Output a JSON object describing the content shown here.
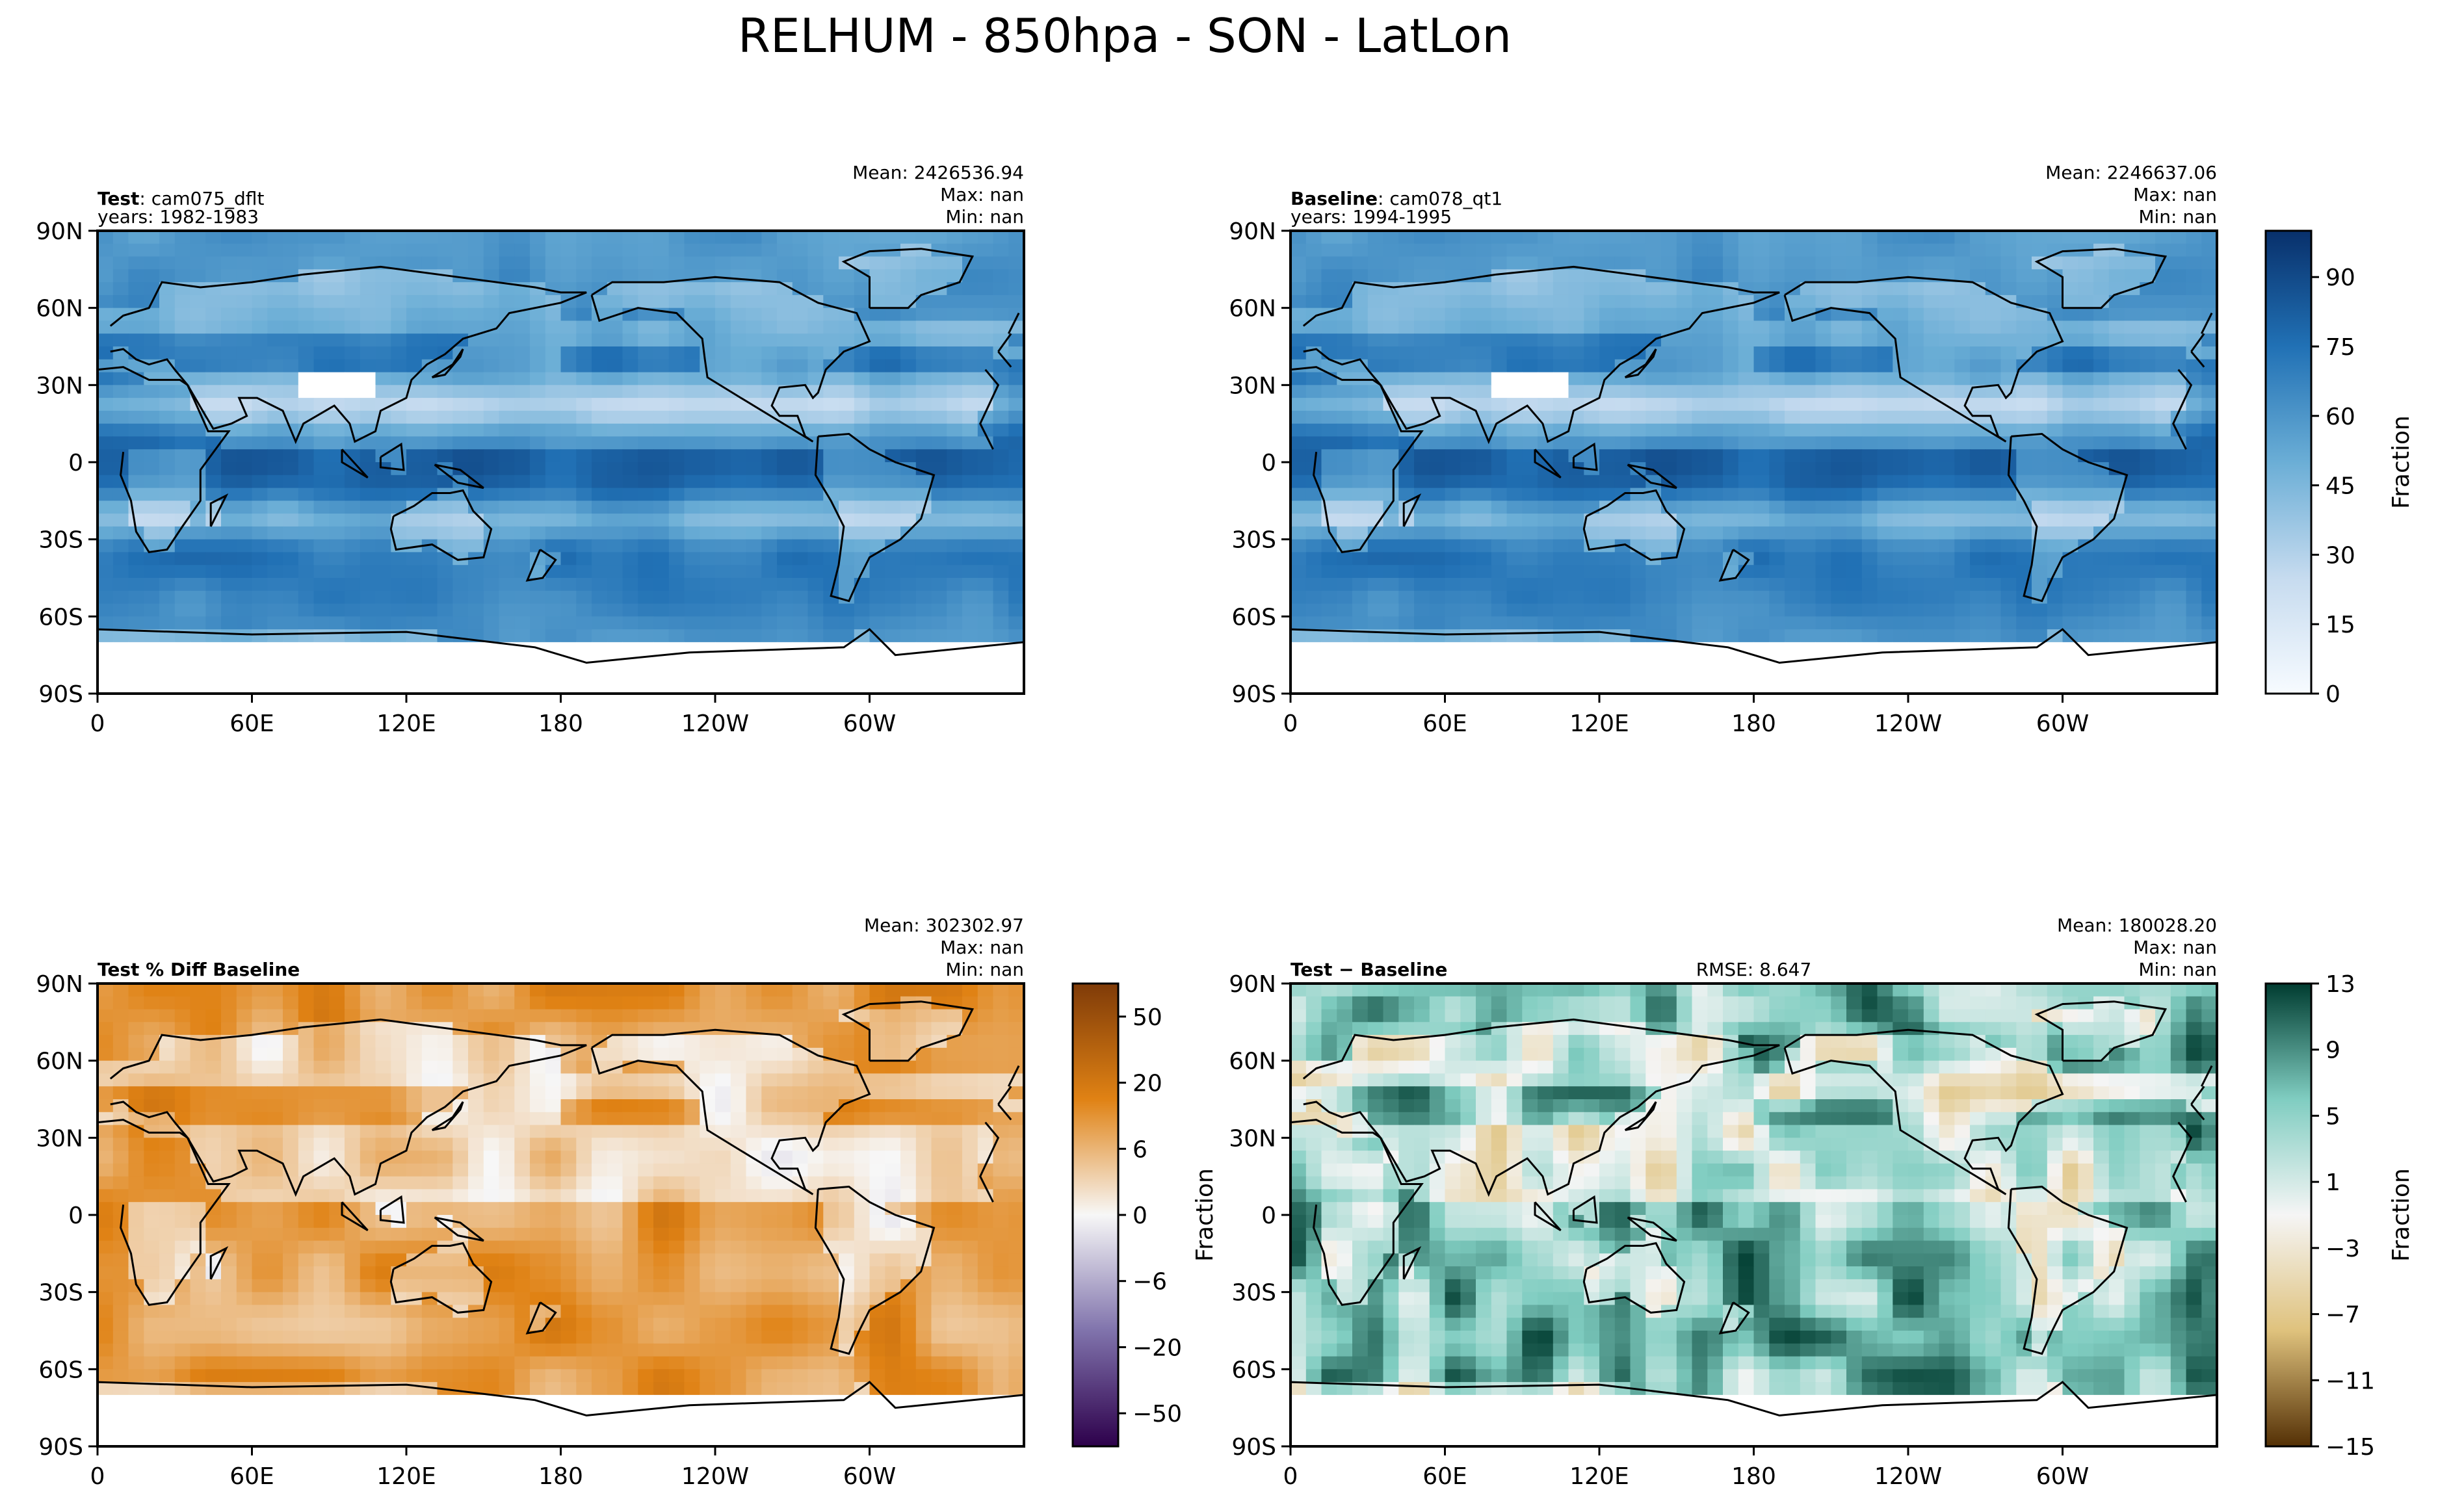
{
  "title": "RELHUM - 850hpa - SON - LatLon",
  "colors": {
    "relhum_ramp": [
      "#f7fbff",
      "#c6dbef",
      "#6baed6",
      "#2171b5",
      "#08306b"
    ],
    "pctdiff_ramp": [
      "#2d004b",
      "#8073ac",
      "#f7f7f7",
      "#e08214",
      "#7f3b08"
    ],
    "diff_ramp": [
      "#543005",
      "#dfc27d",
      "#f5f5f5",
      "#80cdc1",
      "#003c30"
    ],
    "land": "#ffffff",
    "coast": "#000000"
  },
  "chart_data": [
    {
      "type": "heatmap",
      "panel": "test",
      "label_bold": "Test",
      "label_rest": ": cam075_dflt",
      "years": "years: 1982-1983",
      "stats": [
        "Mean: 2426536.94",
        "Max:   nan",
        "Min:   nan"
      ],
      "xticks": [
        "0",
        "60E",
        "120E",
        "180",
        "120W",
        "60W"
      ],
      "yticks": [
        "90N",
        "60N",
        "30N",
        "0",
        "30S",
        "60S",
        "90S"
      ],
      "xlim": [
        0,
        360
      ],
      "ylim": [
        -90,
        90
      ],
      "colormap": "relhum_ramp"
    },
    {
      "type": "heatmap",
      "panel": "baseline",
      "label_bold": "Baseline",
      "label_rest": ": cam078_qt1",
      "years": "years: 1994-1995",
      "stats": [
        "Mean: 2246637.06",
        "Max:   nan",
        "Min:   nan"
      ],
      "xticks": [
        "0",
        "60E",
        "120E",
        "180",
        "120W",
        "60W"
      ],
      "yticks": [
        "90N",
        "60N",
        "30N",
        "0",
        "30S",
        "60S",
        "90S"
      ],
      "xlim": [
        0,
        360
      ],
      "ylim": [
        -90,
        90
      ],
      "colormap": "relhum_ramp",
      "colorbar": {
        "label": "Fraction",
        "range": [
          0,
          100
        ],
        "ticks": [
          "0",
          "15",
          "30",
          "45",
          "60",
          "75",
          "90"
        ],
        "tick_values": [
          0,
          15,
          30,
          45,
          60,
          75,
          90
        ]
      }
    },
    {
      "type": "heatmap",
      "panel": "pctdiff",
      "label_bold": "Test % Diff Baseline",
      "stats": [
        "Mean: 302302.97",
        "Max:   nan",
        "Min:   nan"
      ],
      "xticks": [
        "0",
        "60E",
        "120E",
        "180",
        "120W",
        "60W"
      ],
      "yticks": [
        "90N",
        "60N",
        "30N",
        "0",
        "30S",
        "60S",
        "90S"
      ],
      "xlim": [
        0,
        360
      ],
      "ylim": [
        -90,
        90
      ],
      "colormap": "pctdiff_ramp",
      "colorbar": {
        "label": "",
        "ticks": [
          "50",
          "20",
          "6",
          "0",
          "−6",
          "−20",
          "−50"
        ],
        "levels": 20
      }
    },
    {
      "type": "heatmap",
      "panel": "diff",
      "label_bold": "Test − Baseline",
      "rmse": "RMSE: 8.647",
      "ylabel": "Fraction",
      "stats": [
        "Mean: 180028.20",
        "Max:   nan",
        "Min:   nan"
      ],
      "xticks": [
        "0",
        "60E",
        "120E",
        "180",
        "120W",
        "60W"
      ],
      "yticks": [
        "90N",
        "60N",
        "30N",
        "0",
        "30S",
        "60S",
        "90S"
      ],
      "xlim": [
        0,
        360
      ],
      "ylim": [
        -90,
        90
      ],
      "colormap": "diff_ramp",
      "colorbar": {
        "label": "Fraction",
        "range": [
          -15,
          13
        ],
        "ticks": [
          "13",
          "9",
          "5",
          "1",
          "−3",
          "−7",
          "−11",
          "−15"
        ],
        "tick_values": [
          13,
          9,
          5,
          1,
          -3,
          -7,
          -11,
          -15
        ]
      }
    }
  ]
}
